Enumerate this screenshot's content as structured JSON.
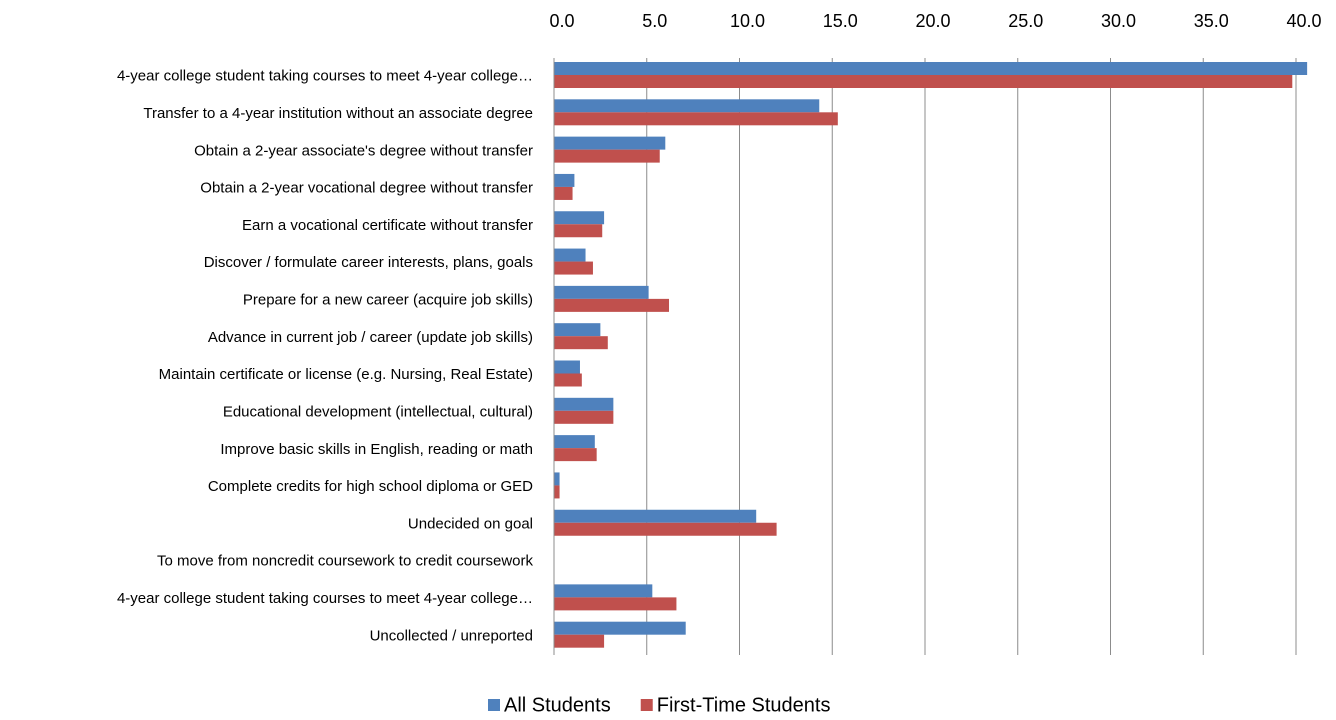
{
  "chart_data": {
    "type": "hbar",
    "categories": [
      "4-year college student taking courses to meet 4-year college…",
      "Transfer to a 4-year institution without an associate degree",
      "Obtain a 2-year associate's degree without transfer",
      "Obtain a 2-year vocational degree without transfer",
      "Earn a vocational certificate without transfer",
      "Discover / formulate career interests, plans, goals",
      "Prepare for a new career (acquire job skills)",
      "Advance in current job / career (update job skills)",
      "Maintain certificate or license (e.g. Nursing, Real Estate)",
      "Educational development (intellectual, cultural)",
      "Improve basic skills in English, reading or math",
      "Complete credits for high school diploma or GED",
      "Undecided on goal",
      "To move from noncredit coursework to credit coursework",
      "4-year college student taking courses to meet 4-year college…",
      "Uncollected / unreported"
    ],
    "series": [
      {
        "name": "All Students",
        "color": "#4f81bd",
        "values": [
          40.6,
          14.3,
          6.0,
          1.1,
          2.7,
          1.7,
          5.1,
          2.5,
          1.4,
          3.2,
          2.2,
          0.3,
          10.9,
          0,
          5.3,
          7.1
        ]
      },
      {
        "name": "First-Time Students",
        "color": "#c0504d",
        "values": [
          39.8,
          15.3,
          5.7,
          1.0,
          2.6,
          2.1,
          6.2,
          2.9,
          1.5,
          3.2,
          2.3,
          0.3,
          12.0,
          0,
          6.6,
          2.7
        ]
      }
    ],
    "xlim": [
      0,
      40
    ],
    "xticks": [
      {
        "value": 0,
        "label": "0.0"
      },
      {
        "value": 5,
        "label": "5.0"
      },
      {
        "value": 10,
        "label": "10.0"
      },
      {
        "value": 15,
        "label": "15.0"
      },
      {
        "value": 20,
        "label": "20.0"
      },
      {
        "value": 25,
        "label": "25.0"
      },
      {
        "value": 30,
        "label": "30.0"
      },
      {
        "value": 35,
        "label": "35.0"
      },
      {
        "value": 40,
        "label": "40.0"
      }
    ],
    "grid": true,
    "legend": "bottom"
  }
}
